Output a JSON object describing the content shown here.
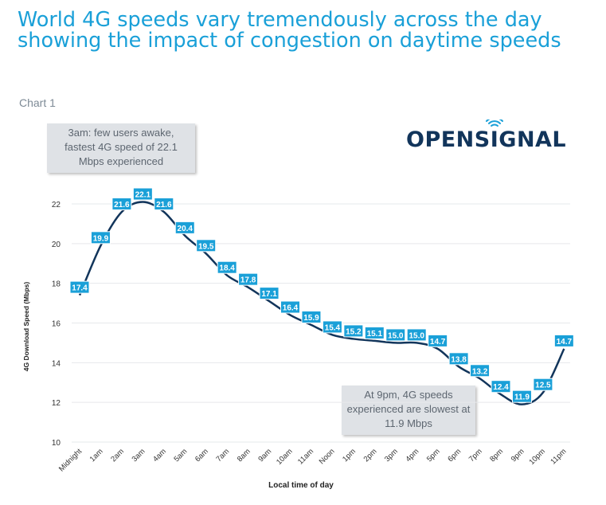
{
  "title": "World 4G speeds vary tremendously across the day showing the impact of congestion on daytime speeds",
  "subtitle": "Chart 1",
  "logo": {
    "text_before": "OPENS",
    "text_i": "I",
    "text_after": "GNAL",
    "color": "#12355b",
    "icon": "wifi-signal-icon"
  },
  "annotations": {
    "top": "3am: few users awake, fastest 4G speed of 22.1 Mbps experienced",
    "bottom": "At 9pm, 4G speeds experienced are slowest at 11.9 Mbps"
  },
  "colors": {
    "label_bg": "#1aa0d8",
    "line": "#12355b",
    "title": "#1aa0d8",
    "grid": "#e6e8eb"
  },
  "chart_data": {
    "type": "line",
    "title": "World 4G speeds vary tremendously across the day showing the impact of congestion on daytime speeds",
    "xlabel": "Local time of day",
    "ylabel": "4G Download Speed (Mbps)",
    "ylim": [
      10,
      22
    ],
    "yticks": [
      10,
      12,
      14,
      16,
      18,
      20,
      22
    ],
    "grid": true,
    "categories": [
      "Midnight",
      "1am",
      "2am",
      "3am",
      "4am",
      "5am",
      "6am",
      "7am",
      "8am",
      "9am",
      "10am",
      "11am",
      "Noon",
      "1pm",
      "2pm",
      "3pm",
      "4pm",
      "5pm",
      "6pm",
      "7pm",
      "8pm",
      "9pm",
      "10pm",
      "11pm"
    ],
    "series": [
      {
        "values": [
          17.4,
          19.9,
          21.6,
          22.1,
          21.6,
          20.4,
          19.5,
          18.4,
          17.8,
          17.1,
          16.4,
          15.9,
          15.4,
          15.2,
          15.1,
          15.0,
          15.0,
          14.7,
          13.8,
          13.2,
          12.4,
          11.9,
          12.5,
          14.7
        ]
      }
    ]
  }
}
